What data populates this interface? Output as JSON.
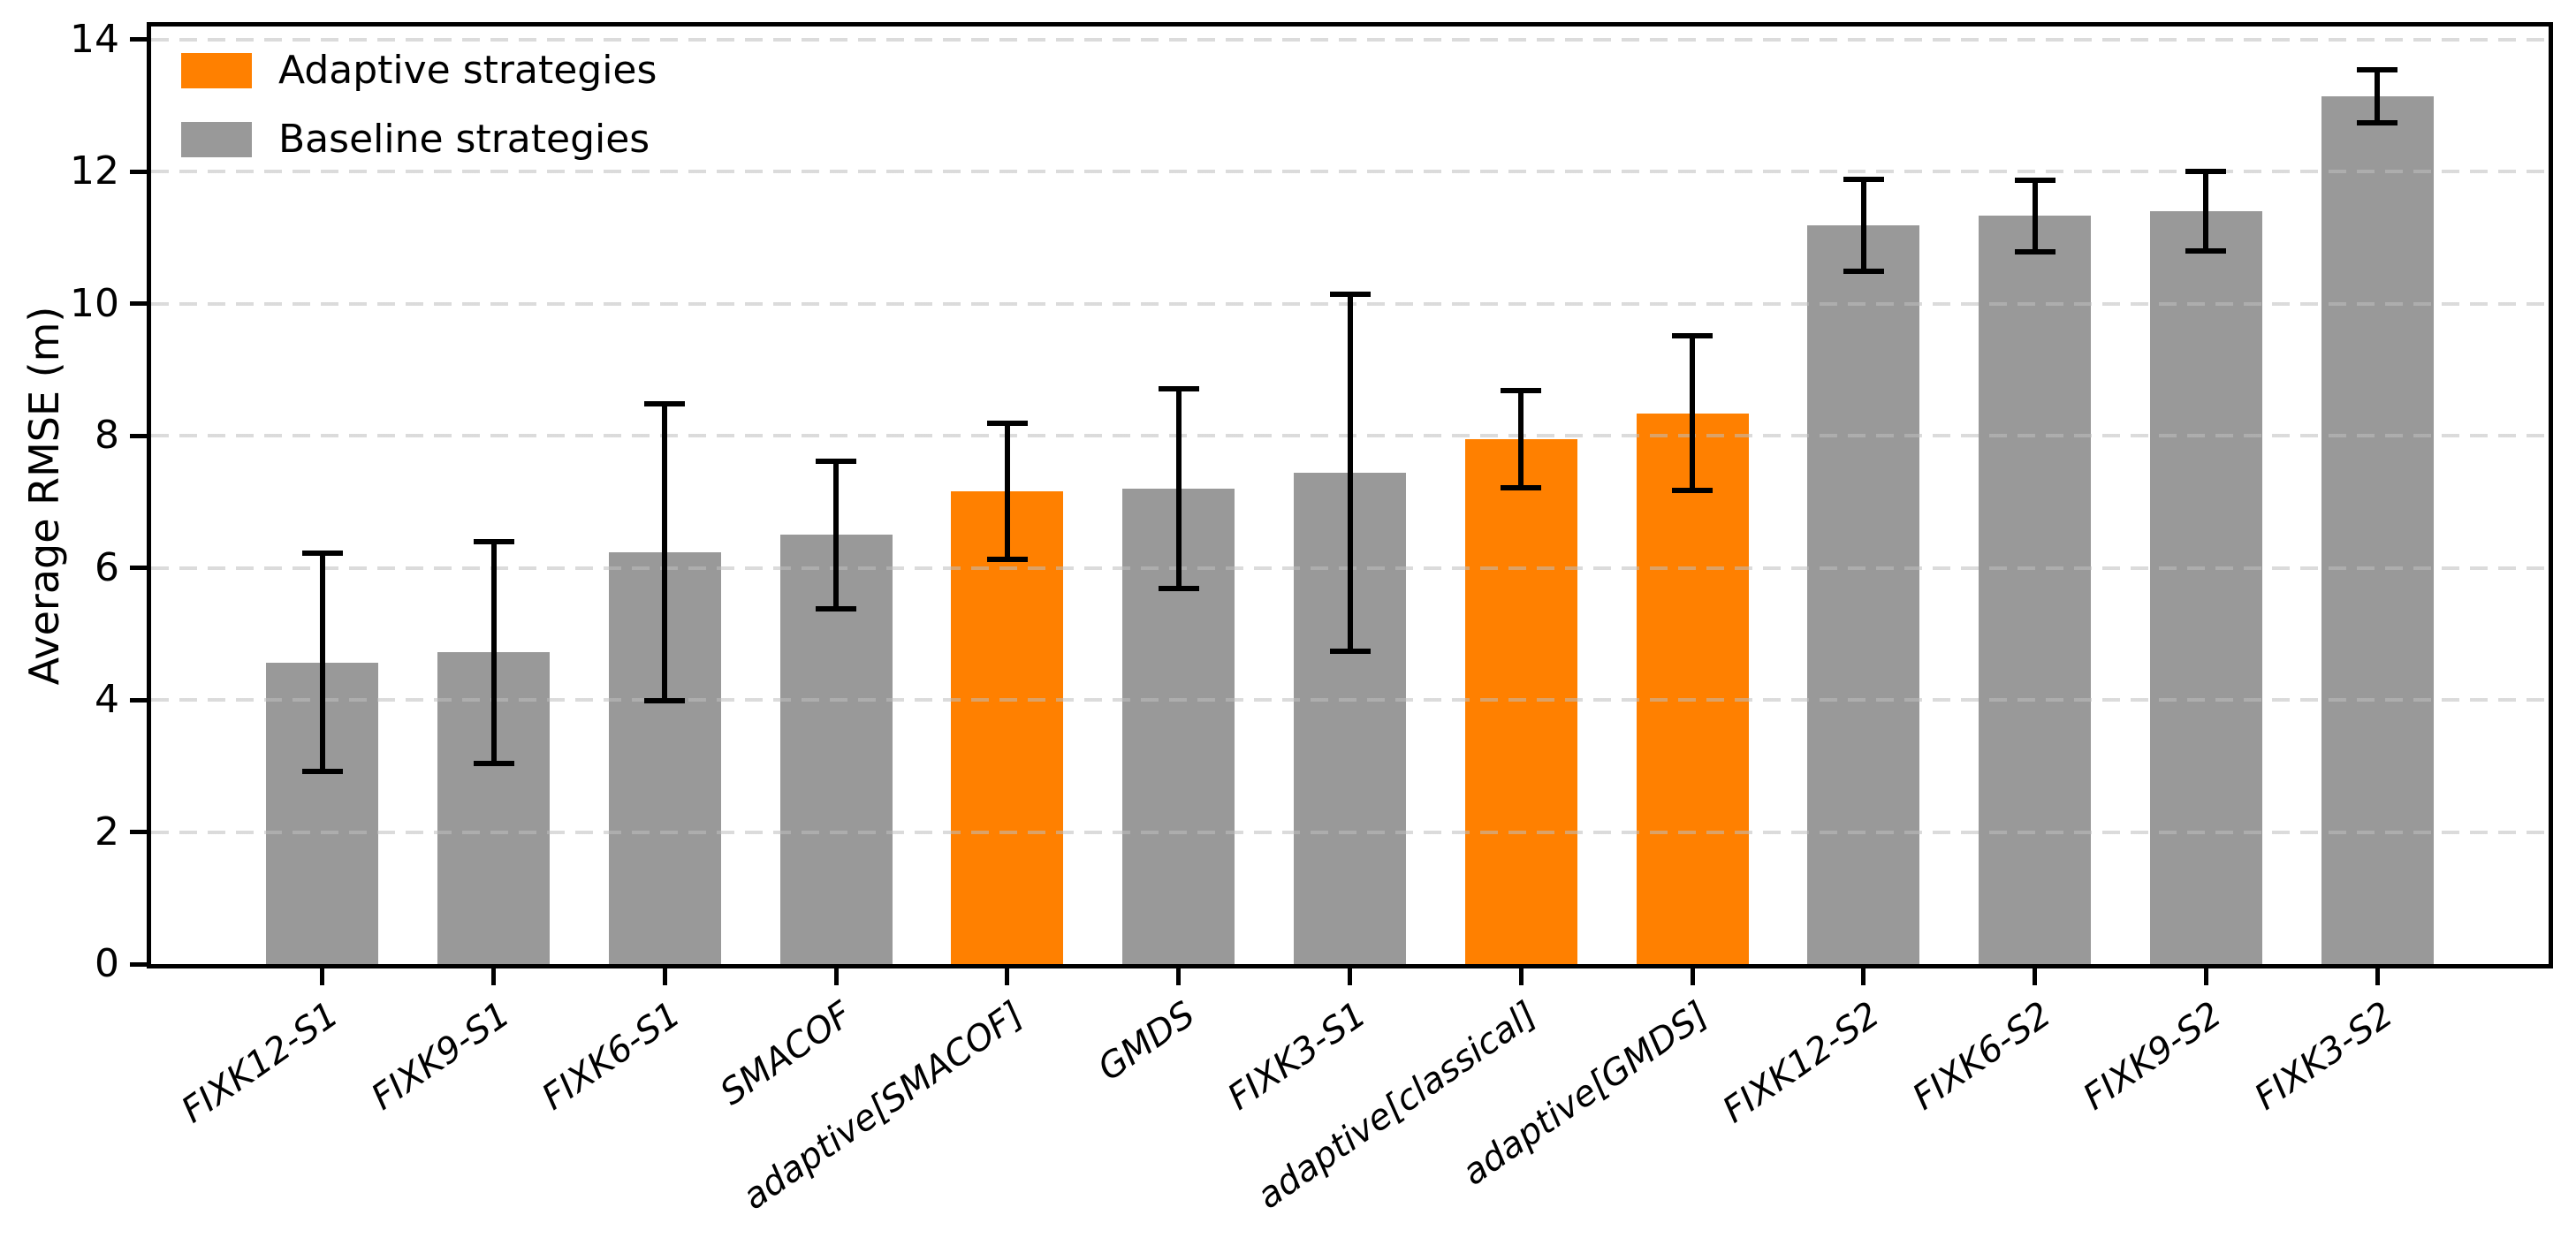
{
  "chart_data": {
    "type": "bar",
    "title": "",
    "xlabel": "",
    "ylabel": "Average RMSE (m)",
    "ylim": [
      0,
      14.2
    ],
    "yticks": [
      0,
      2,
      4,
      6,
      8,
      10,
      12,
      14
    ],
    "grid": {
      "axis": "y",
      "style": "dashed",
      "on": true
    },
    "legend_position": "upper left",
    "xtick_rotation_deg": 35,
    "categories": [
      "FIXK12-S1",
      "FIXK9-S1",
      "FIXK6-S1",
      "SMACOF",
      "adaptive[SMACOF]",
      "GMDS",
      "FIXK3-S1",
      "adaptive[classical]",
      "adaptive[GMDS]",
      "FIXK12-S2",
      "FIXK6-S2",
      "FIXK9-S2",
      "FIXK3-S2"
    ],
    "series": [
      {
        "name": "Average RMSE",
        "values": [
          4.57,
          4.72,
          6.24,
          6.5,
          7.16,
          7.2,
          7.44,
          7.95,
          8.34,
          11.19,
          11.33,
          11.4,
          13.14
        ],
        "error_bars": [
          1.65,
          1.68,
          2.25,
          1.12,
          1.03,
          1.51,
          2.7,
          0.73,
          1.17,
          0.7,
          0.54,
          0.6,
          0.4
        ]
      }
    ],
    "bar_groups": [
      "baseline",
      "baseline",
      "baseline",
      "baseline",
      "adaptive",
      "baseline",
      "baseline",
      "adaptive",
      "adaptive",
      "baseline",
      "baseline",
      "baseline",
      "baseline"
    ],
    "legend": [
      {
        "key": "adaptive",
        "label": "Adaptive strategies",
        "color": "#ff8000"
      },
      {
        "key": "baseline",
        "label": "Baseline strategies",
        "color": "#999999"
      }
    ]
  },
  "colors": {
    "adaptive": "#ff8000",
    "baseline": "#999999",
    "error_bar": "#000000",
    "grid": "#dcdcdc",
    "axis": "#000000",
    "background": "#ffffff"
  }
}
